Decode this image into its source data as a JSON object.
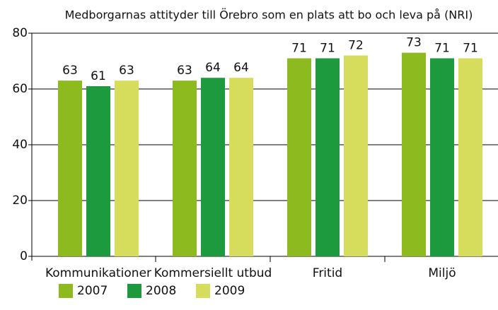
{
  "chart_data": {
    "type": "bar",
    "title": "Medborgarnas attityder till Örebro som en plats att bo och leva på (NRI)",
    "categories": [
      "Kommunikationer",
      "Kommersiellt utbud",
      "Fritid",
      "Miljö"
    ],
    "series": [
      {
        "name": "2007",
        "color": "#8cba1f",
        "values": [
          63,
          63,
          71,
          73
        ]
      },
      {
        "name": "2008",
        "color": "#1c9a3d",
        "values": [
          61,
          64,
          71,
          71
        ]
      },
      {
        "name": "2009",
        "color": "#d6dc5c",
        "values": [
          63,
          64,
          72,
          71
        ]
      }
    ],
    "ylim": [
      0,
      80
    ],
    "yticks": [
      0,
      20,
      40,
      60,
      80
    ],
    "grid": true,
    "legend": "bottom"
  }
}
